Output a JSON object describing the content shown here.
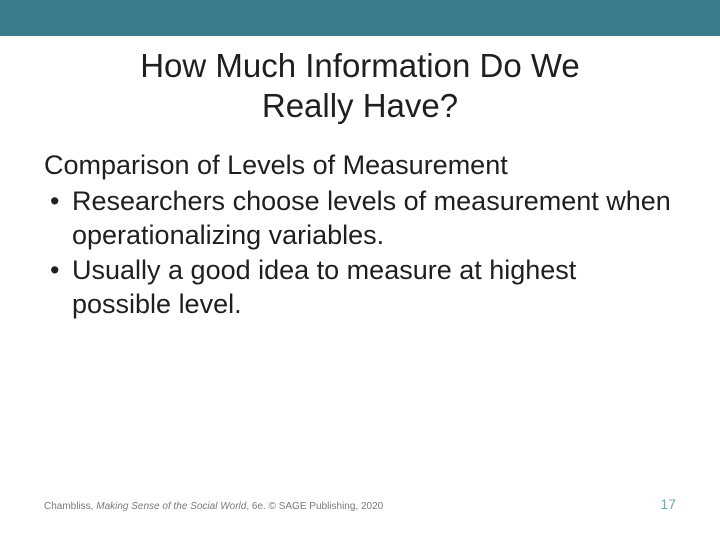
{
  "colors": {
    "header_bar": "#3a7b8c",
    "title_color": "#1f1f1f",
    "body_color": "#1f1f1f",
    "footer_color": "#7a7a7a",
    "page_num_color": "#6fa8b8",
    "background": "#ffffff"
  },
  "typography": {
    "title_fontsize": 33,
    "body_fontsize": 27,
    "footer_fontsize": 10,
    "page_num_fontsize": 14,
    "title_weight": 400,
    "body_weight": 400
  },
  "title": {
    "line1": "How Much Information Do We",
    "line2": "Really Have?"
  },
  "content": {
    "subtitle": "Comparison of Levels of Measurement",
    "bullets": [
      "Researchers choose levels of measurement when operationalizing variables.",
      "Usually a good idea to measure at highest possible level."
    ]
  },
  "footer": {
    "author": "Chambliss, ",
    "book_title_italic": "Making Sense of the Social World",
    "edition_publisher": ", 6e. © SAGE Publishing, 2020",
    "page_number": "17"
  }
}
